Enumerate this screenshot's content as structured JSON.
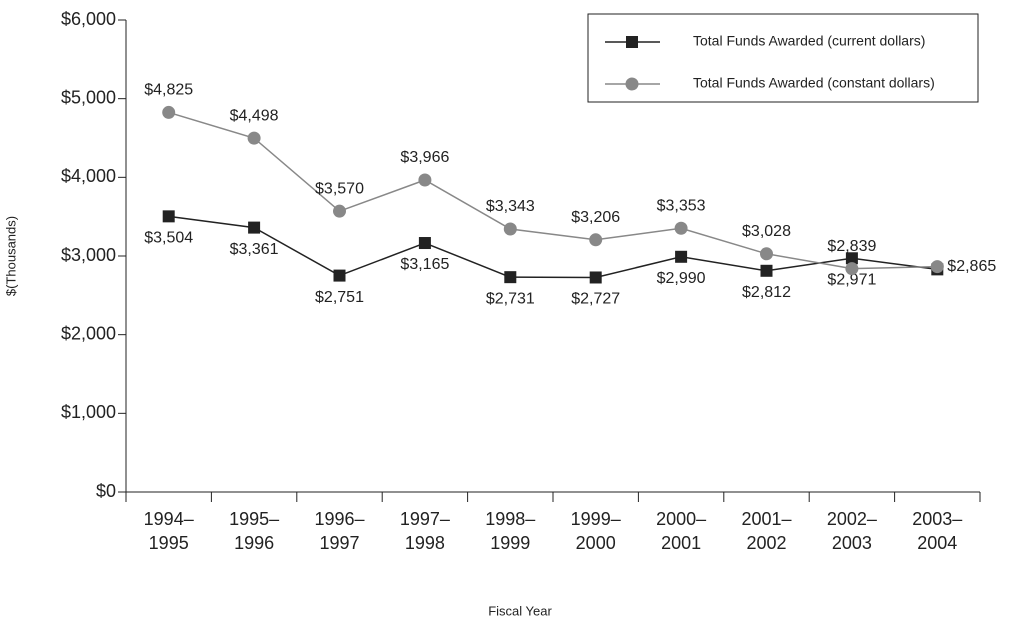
{
  "chart_data": {
    "type": "line",
    "y_label": "$(Thousands)",
    "x_label": "Fiscal Year",
    "categories": [
      "1994–1995",
      "1995–1996",
      "1996–1997",
      "1997–1998",
      "1998–1999",
      "1999–2000",
      "2000–2001",
      "2001–2002",
      "2002–2003",
      "2003–2004"
    ],
    "series": [
      {
        "name": "Total Funds Awarded (current dollars)",
        "color": "#222222",
        "marker": "square",
        "values": [
          3504,
          3361,
          2751,
          3165,
          2731,
          2727,
          2990,
          2812,
          2971,
          2830
        ],
        "value_labels": [
          "$3,504",
          "$3,361",
          "$2,751",
          "$3,165",
          "$2,731",
          "$2,727",
          "$2,990",
          "$2,812",
          "$2,971",
          null
        ]
      },
      {
        "name": "Total Funds Awarded (constant dollars)",
        "color": "#888888",
        "marker": "circle",
        "values": [
          4825,
          4498,
          3570,
          3966,
          3343,
          3206,
          3353,
          3028,
          2839,
          2865
        ],
        "value_labels": [
          "$4,825",
          "$4,498",
          "$3,570",
          "$3,966",
          "$3,343",
          "$3,206",
          "$3,353",
          "$3,028",
          "$2,839",
          "$2,865"
        ]
      }
    ],
    "ylim": [
      0,
      6000
    ],
    "yticks": [
      {
        "value": 0,
        "label": "$0"
      },
      {
        "value": 1000,
        "label": "$1,000"
      },
      {
        "value": 2000,
        "label": "$2,000"
      },
      {
        "value": 3000,
        "label": "$3,000"
      },
      {
        "value": 4000,
        "label": "$4,000"
      },
      {
        "value": 5000,
        "label": "$5,000"
      },
      {
        "value": 6000,
        "label": "$6,000"
      }
    ],
    "legend": "upper right"
  }
}
